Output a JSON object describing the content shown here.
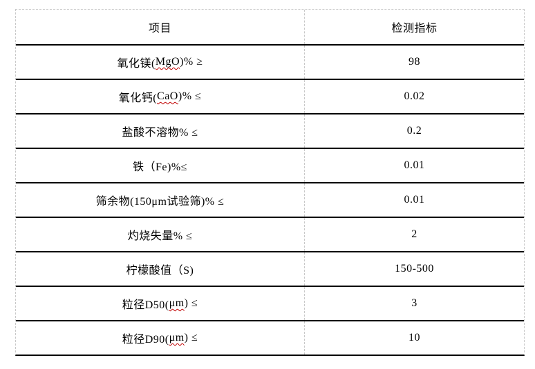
{
  "page": {
    "background_color": "#ffffff"
  },
  "table": {
    "outer_border_color": "#c8c8c8",
    "row_line_color": "#000000",
    "spellcheck_squiggle_color": "#c00000",
    "headers": {
      "item": "项目",
      "value": "检测指标"
    },
    "rows": [
      {
        "pre": "氧化镁(",
        "mark": "MgO",
        "post": ")% ≥",
        "value": "98"
      },
      {
        "pre": "氧化钙(",
        "mark": "CaO",
        "post": ")% ≤",
        "value": "0.02"
      },
      {
        "pre": "盐酸不溶物% ≤",
        "mark": "",
        "post": "",
        "value": "0.2"
      },
      {
        "pre": "铁（Fe)%≤",
        "mark": "",
        "post": "",
        "value": "0.01"
      },
      {
        "pre": "筛余物(150μm试验筛)% ≤",
        "mark": "",
        "post": "",
        "value": "0.01"
      },
      {
        "pre": "灼烧失量% ≤",
        "mark": "",
        "post": "",
        "value": "2"
      },
      {
        "pre": "柠檬酸值（S)",
        "mark": "",
        "post": "",
        "value": "150-500"
      },
      {
        "pre": "粒径D50(",
        "mark": "μm",
        "post": ") ≤",
        "value": "3"
      },
      {
        "pre": "粒径D90(",
        "mark": "μm",
        "post": ") ≤",
        "value": "10"
      }
    ]
  }
}
